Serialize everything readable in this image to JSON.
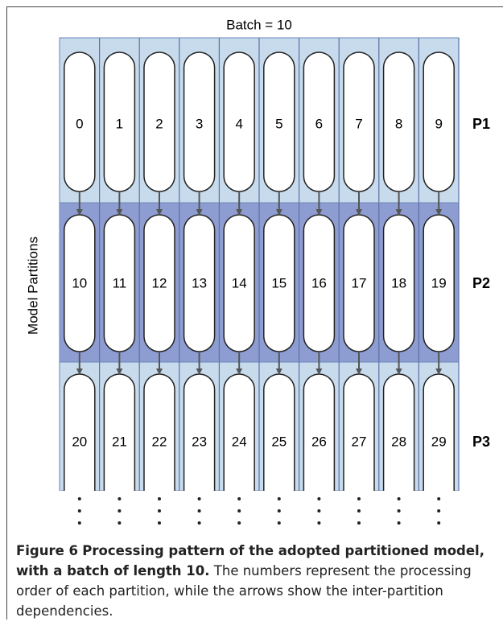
{
  "figure": {
    "top_label": "Batch = 10",
    "side_label": "Model Partitions",
    "rows": [
      {
        "label": "P1",
        "cells": [
          "0",
          "1",
          "2",
          "3",
          "4",
          "5",
          "6",
          "7",
          "8",
          "9"
        ]
      },
      {
        "label": "P2",
        "cells": [
          "10",
          "11",
          "12",
          "13",
          "14",
          "15",
          "16",
          "17",
          "18",
          "19"
        ]
      },
      {
        "label": "P3",
        "cells": [
          "20",
          "21",
          "22",
          "23",
          "24",
          "25",
          "26",
          "27",
          "28",
          "29"
        ]
      }
    ]
  },
  "caption": {
    "label": "Figure 6",
    "title": "Processing pattern of the adopted partitioned model, with a batch of length 10.",
    "text": "The numbers represent the processing order of each partition, while the arrows show the inter-partition dependencies."
  }
}
